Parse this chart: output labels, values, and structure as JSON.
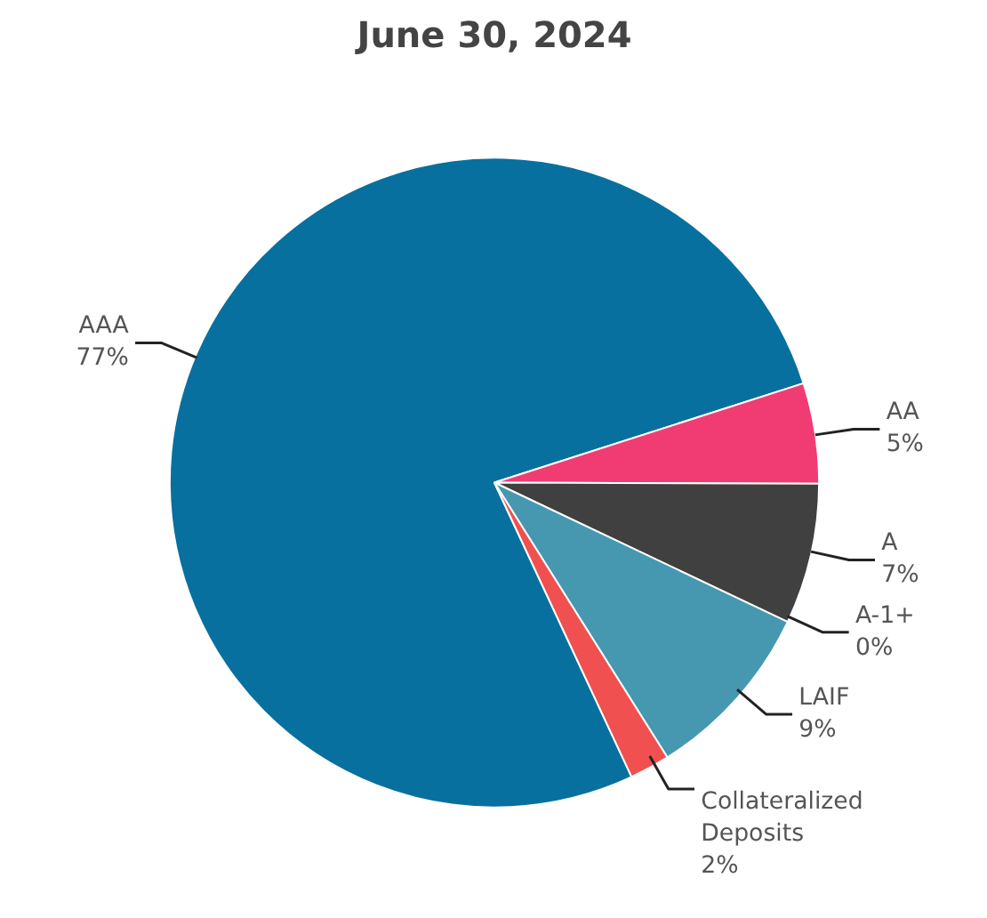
{
  "chart_data": {
    "type": "pie",
    "title": "June 30, 2024",
    "categories": [
      "AAA",
      "AA",
      "A",
      "A-1+",
      "LAIF",
      "Collateralized Deposits"
    ],
    "values": [
      77,
      5,
      7,
      0,
      9,
      2
    ],
    "value_labels": [
      "77%",
      "5%",
      "7%",
      "0%",
      "9%",
      "2%"
    ],
    "colors": [
      "#08709e",
      "#f03c73",
      "#404040",
      "#9e9e9e",
      "#4598b0",
      "#f05050"
    ]
  }
}
